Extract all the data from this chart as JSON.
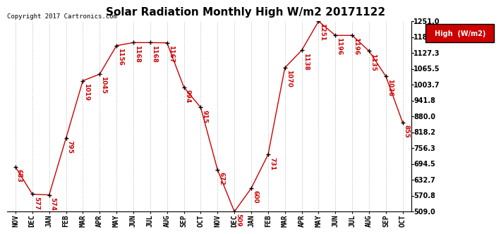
{
  "title": "Solar Radiation Monthly High W/m2 20171122",
  "copyright": "Copyright 2017 Cartronics.com",
  "legend_label": "High  (W/m2)",
  "months": [
    "NOV",
    "DEC",
    "JAN",
    "FEB",
    "MAR",
    "APR",
    "MAY",
    "JUN",
    "JUL",
    "AUG",
    "SEP",
    "OCT",
    "NOV",
    "DEC",
    "JAN",
    "FEB",
    "MAR",
    "APR",
    "MAY",
    "JUN",
    "JUL",
    "AUG",
    "SEP",
    "OCT"
  ],
  "values": [
    683,
    577,
    574,
    795,
    1019,
    1045,
    1156,
    1168,
    1168,
    1167,
    994,
    915,
    672,
    509,
    600,
    731,
    1070,
    1138,
    1251,
    1196,
    1196,
    1135,
    1036,
    855
  ],
  "ylim_min": 509.0,
  "ylim_max": 1251.0,
  "yticks": [
    509.0,
    570.8,
    632.7,
    694.5,
    756.3,
    818.2,
    880.0,
    941.8,
    1003.7,
    1065.5,
    1127.3,
    1189.2,
    1251.0
  ],
  "line_color": "#cc0000",
  "marker_color": "#000000",
  "grid_color": "#c8c8c8",
  "bg_color": "#ffffff",
  "title_fontsize": 11,
  "tick_fontsize": 7,
  "annotation_fontsize": 6.5,
  "legend_bg": "#cc0000",
  "legend_text_color": "#ffffff",
  "copyright_fontsize": 6.5
}
